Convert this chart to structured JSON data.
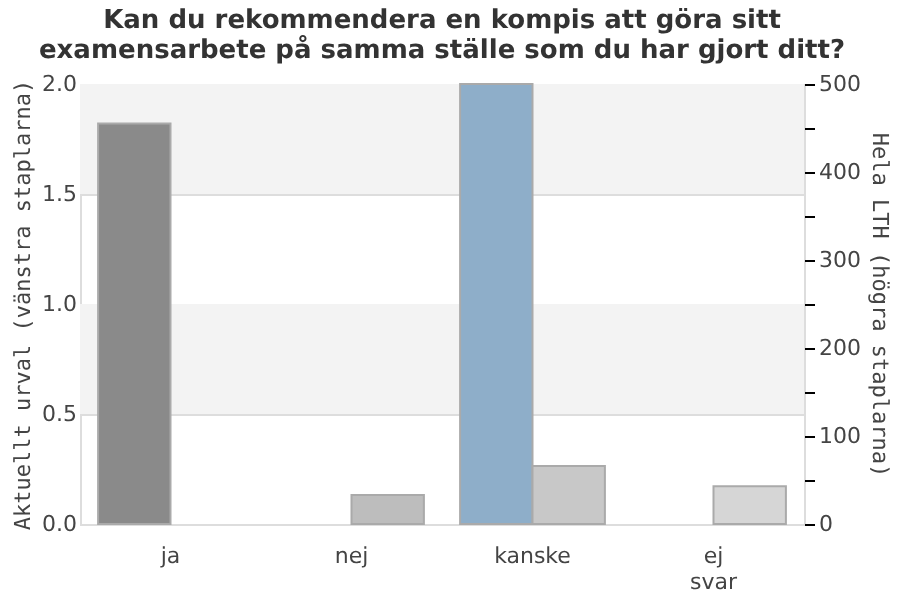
{
  "chart_data": {
    "type": "bar",
    "title": [
      "Kan du rekommendera en kompis att göra sitt",
      "examensarbete på samma ställe som du har gjort ditt?"
    ],
    "categories": [
      "ja",
      "nej",
      "kanske",
      "ej svar"
    ],
    "series": [
      {
        "axis": "y",
        "values": [
          1.82,
          null,
          2.0,
          null
        ],
        "colors": [
          "#8a8a8a",
          "#8a8a8a",
          "#8eaec9",
          "#8a8a8a"
        ]
      },
      {
        "axis": "y2",
        "values": [
          null,
          33,
          66,
          43
        ],
        "colors": [
          "#bdbdbd",
          "#bdbdbd",
          "#c8c8c8",
          "#d6d6d6"
        ]
      }
    ],
    "ylabel": "Aktuellt urval (vänstra staplarna)",
    "y2label": "Hela LTH (högra staplarna)",
    "ylim": [
      0,
      2.0
    ],
    "yticks": [
      {
        "value": 0,
        "label": "0.0"
      },
      0.5,
      {
        "value": 1,
        "label": "1.0"
      },
      1.5,
      {
        "value": 2,
        "label": "2.0"
      }
    ],
    "y2lim": [
      0,
      500
    ],
    "y2ticks": [
      0,
      {
        "value": 50,
        "label": null
      },
      100,
      {
        "value": 150,
        "label": null
      },
      200,
      {
        "value": 250,
        "label": null
      },
      300,
      {
        "value": 350,
        "label": null
      },
      400,
      {
        "value": 450,
        "label": null
      },
      500
    ],
    "bands": [
      {
        "axis": "y",
        "from": 0.5,
        "to": 1.0,
        "color": "#f3f3f3"
      },
      {
        "axis": "y",
        "from": 1.5,
        "to": 2.0,
        "color": "#f3f3f3"
      }
    ],
    "grid": "y"
  }
}
